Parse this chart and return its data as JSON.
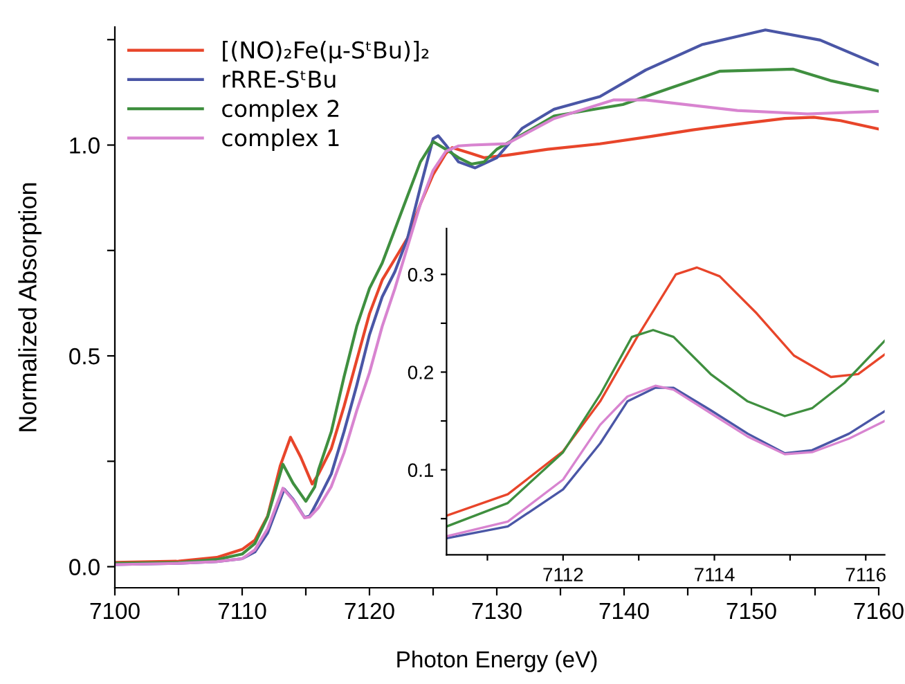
{
  "chart_data": [
    {
      "type": "line",
      "xlabel": "Photon Energy (eV)",
      "ylabel": "Normalized Absorption",
      "xlim": [
        7100,
        7160
      ],
      "ylim": [
        -0.05,
        1.28
      ],
      "xticks": [
        7100,
        {
          "value": 7105,
          "label": null
        },
        7110,
        {
          "value": 7115,
          "label": null
        },
        7120,
        {
          "value": 7125,
          "label": null
        },
        7130,
        {
          "value": 7135,
          "label": null
        },
        7140,
        {
          "value": 7145,
          "label": null
        },
        7150,
        {
          "value": 7155,
          "label": null
        },
        7160
      ],
      "yticks": [
        "0.0",
        {
          "value": 0.25,
          "label": null
        },
        {
          "value": 0.5,
          "label": "0.5"
        },
        {
          "value": 0.75,
          "label": null
        },
        {
          "value": 1.0,
          "label": "1.0"
        },
        {
          "value": 1.25,
          "label": null
        }
      ],
      "legend": "top left",
      "grid": false,
      "line_style": "solid",
      "marker": "none",
      "series": [
        {
          "name": "[(NO)₂Fe(μ-SᵗBu)]₂",
          "color": "#e8452a",
          "x": [
            7100,
            7105,
            7108,
            7110,
            7111,
            7112,
            7113,
            7113.8,
            7114.6,
            7115.5,
            7116,
            7117,
            7118,
            7119,
            7120,
            7121,
            7122,
            7123,
            7124,
            7125,
            7126,
            7126.5,
            7128,
            7129,
            7130.8,
            7134,
            7138.1,
            7142,
            7145.4,
            7149,
            7152.6,
            7154.9,
            7157,
            7160
          ],
          "values": [
            0.01,
            0.013,
            0.022,
            0.041,
            0.063,
            0.12,
            0.24,
            0.307,
            0.26,
            0.196,
            0.22,
            0.28,
            0.38,
            0.49,
            0.6,
            0.68,
            0.73,
            0.78,
            0.86,
            0.93,
            0.98,
            0.994,
            0.98,
            0.97,
            0.976,
            0.99,
            1.003,
            1.02,
            1.036,
            1.05,
            1.063,
            1.066,
            1.058,
            1.038
          ]
        },
        {
          "name": "rRRE-SᵗBu",
          "color": "#4a56a6",
          "x": [
            7100,
            7105,
            7108,
            7110,
            7111,
            7112,
            7113.3,
            7114,
            7114.9,
            7115.3,
            7116,
            7117,
            7118,
            7119,
            7120,
            7121,
            7122,
            7123,
            7124,
            7125,
            7125.4,
            7126,
            7127,
            7128.3,
            7130,
            7132,
            7134.5,
            7138.1,
            7141.7,
            7146.1,
            7151.1,
            7155.4,
            7160
          ],
          "values": [
            0.005,
            0.008,
            0.012,
            0.019,
            0.035,
            0.08,
            0.184,
            0.16,
            0.117,
            0.12,
            0.16,
            0.22,
            0.32,
            0.43,
            0.55,
            0.64,
            0.7,
            0.78,
            0.9,
            1.015,
            1.022,
            1.0,
            0.96,
            0.946,
            0.97,
            1.04,
            1.085,
            1.115,
            1.178,
            1.238,
            1.273,
            1.249,
            1.19
          ]
        },
        {
          "name": "complex 2",
          "color": "#3f8f3f",
          "x": [
            7100,
            7105,
            7108,
            7110,
            7111,
            7112,
            7113.2,
            7114,
            7115,
            7115.7,
            7116,
            7117,
            7118,
            7119,
            7120,
            7121,
            7122,
            7123,
            7124,
            7125,
            7126,
            7127,
            7128,
            7129,
            7130,
            7134.5,
            7139.9,
            7143.5,
            7147.5,
            7153.3,
            7156.2,
            7160
          ],
          "values": [
            0.008,
            0.01,
            0.017,
            0.03,
            0.055,
            0.118,
            0.243,
            0.198,
            0.155,
            0.189,
            0.23,
            0.32,
            0.45,
            0.57,
            0.66,
            0.72,
            0.8,
            0.88,
            0.96,
            1.008,
            0.99,
            0.97,
            0.955,
            0.96,
            0.99,
            1.069,
            1.096,
            1.134,
            1.175,
            1.18,
            1.153,
            1.128
          ]
        },
        {
          "name": "complex 1",
          "color": "#d884d0",
          "x": [
            7100,
            7105,
            7108,
            7110,
            7111,
            7112,
            7113.2,
            7114,
            7114.9,
            7115.3,
            7116,
            7117,
            7118,
            7119,
            7120,
            7121,
            7122,
            7123,
            7124,
            7125,
            7126,
            7127,
            7128,
            7130.8,
            7134.5,
            7139.2,
            7141.7,
            7148.9,
            7154.4,
            7160
          ],
          "values": [
            0.005,
            0.008,
            0.012,
            0.019,
            0.04,
            0.09,
            0.186,
            0.158,
            0.116,
            0.118,
            0.14,
            0.19,
            0.27,
            0.37,
            0.46,
            0.57,
            0.66,
            0.76,
            0.86,
            0.94,
            0.985,
            0.998,
            1.0,
            1.003,
            1.063,
            1.107,
            1.107,
            1.082,
            1.074,
            1.08
          ]
        }
      ]
    },
    {
      "type": "line",
      "xlim": [
        7110.46,
        7116.25
      ],
      "ylim": [
        0.013,
        0.347
      ],
      "xticks": [
        {
          "value": 7111,
          "label": null
        },
        7112,
        {
          "value": 7113,
          "label": null
        },
        7114,
        {
          "value": 7115,
          "label": null
        },
        7116
      ],
      "yticks": [
        {
          "value": 0.05,
          "label": null
        },
        {
          "value": 0.1,
          "label": "0.1"
        },
        {
          "value": 0.15,
          "label": null
        },
        {
          "value": 0.2,
          "label": "0.2"
        },
        {
          "value": 0.25,
          "label": null
        },
        {
          "value": 0.3,
          "label": "0.3"
        }
      ],
      "grid": false,
      "line_style": "solid",
      "marker": "none",
      "series": [
        {
          "color": "#e8452a",
          "x": [
            7110.46,
            7111.27,
            7112,
            7112.49,
            7112.98,
            7113.49,
            7113.77,
            7114.07,
            7114.56,
            7115.05,
            7115.54,
            7115.9,
            7116.25
          ],
          "values": [
            0.053,
            0.075,
            0.119,
            0.17,
            0.236,
            0.3,
            0.307,
            0.298,
            0.26,
            0.217,
            0.195,
            0.198,
            0.218
          ]
        },
        {
          "color": "#4a56a6",
          "x": [
            7110.46,
            7111.27,
            7112,
            7112.49,
            7112.85,
            7113.22,
            7113.46,
            7113.95,
            7114.44,
            7114.93,
            7115.29,
            7115.78,
            7116.25
          ],
          "values": [
            0.03,
            0.042,
            0.08,
            0.127,
            0.17,
            0.184,
            0.184,
            0.161,
            0.137,
            0.117,
            0.12,
            0.137,
            0.16
          ]
        },
        {
          "color": "#3f8f3f",
          "x": [
            7110.46,
            7111.27,
            7112,
            7112.49,
            7112.91,
            7113.19,
            7113.46,
            7113.95,
            7114.44,
            7114.93,
            7115.29,
            7115.72,
            7116.25
          ],
          "values": [
            0.042,
            0.066,
            0.118,
            0.177,
            0.236,
            0.243,
            0.236,
            0.198,
            0.17,
            0.155,
            0.163,
            0.189,
            0.232
          ]
        },
        {
          "color": "#d884d0",
          "x": [
            7110.46,
            7111.27,
            7112,
            7112.49,
            7112.85,
            7113.22,
            7113.46,
            7113.95,
            7114.44,
            7114.93,
            7115.29,
            7115.78,
            7116.25
          ],
          "values": [
            0.032,
            0.047,
            0.09,
            0.146,
            0.175,
            0.186,
            0.182,
            0.158,
            0.134,
            0.116,
            0.118,
            0.132,
            0.15
          ]
        }
      ]
    }
  ]
}
